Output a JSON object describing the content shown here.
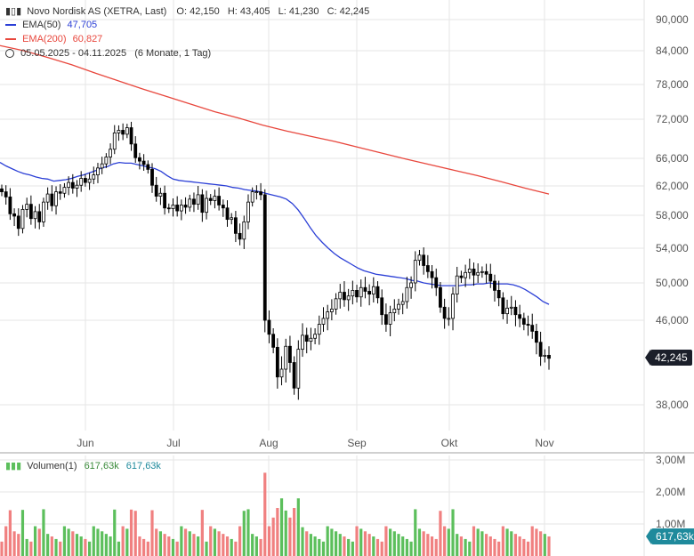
{
  "header": {
    "instrument": "Novo Nordisk AS (XETRA, Last)",
    "ohlc": {
      "o_label": "O:",
      "o": "42,150",
      "h_label": "H:",
      "h": "43,405",
      "l_label": "L:",
      "l": "41,230",
      "c_label": "C:",
      "c": "42,245"
    },
    "ema50_label": "EMA(50)",
    "ema50_value": "47,705",
    "ema200_label": "EMA(200)",
    "ema200_value": "60,827",
    "range_text": "05.05.2025 - 04.11.2025",
    "range_detail": "(6 Monate, 1 Tag)"
  },
  "volume_legend": {
    "label": "Volumen(1)",
    "value1": "617,63k",
    "value2": "617,63k"
  },
  "colors": {
    "ema50": "#2b3fd6",
    "ema200": "#e8473d",
    "up": "#5cbf5c",
    "down": "#f08080",
    "candle": "#000000",
    "grid": "#e6e6e6"
  },
  "chart_data": {
    "type": "candlestick",
    "x_ticks": [
      "Jun",
      "Jul",
      "Aug",
      "Sep",
      "Okt",
      "Nov"
    ],
    "y_ticks": [
      "90,000",
      "84,000",
      "78,000",
      "72,000",
      "66,000",
      "62,000",
      "58,000",
      "54,000",
      "50,000",
      "46,000",
      "38,000"
    ],
    "y_tick_values": [
      90,
      84,
      78,
      72,
      66,
      62,
      58,
      54,
      50,
      46,
      38
    ],
    "last_price_label": "42,245",
    "volume_ticks": [
      "3,00M",
      "2,00M",
      "1,00M"
    ],
    "volume_tick_values": [
      3.0,
      2.0,
      1.0
    ],
    "last_volume_label": "617,63k",
    "close": [
      61.2,
      60.5,
      58.2,
      57.9,
      56.4,
      58.8,
      59.5,
      57.6,
      58.5,
      57.2,
      59.8,
      60.9,
      59.3,
      61.2,
      61.0,
      61.8,
      62.5,
      61.7,
      62.1,
      63.1,
      62.5,
      63.0,
      63.6,
      64.6,
      65.2,
      66.2,
      67.4,
      69.9,
      70.3,
      69.7,
      70.7,
      68.2,
      66.1,
      65.6,
      65.1,
      64.4,
      62.1,
      60.6,
      61.0,
      59.0,
      58.9,
      59.4,
      58.6,
      59.4,
      59.1,
      60.2,
      59.5,
      60.8,
      58.4,
      60.3,
      60.0,
      60.6,
      59.4,
      59.0,
      57.5,
      57.7,
      55.8,
      55.1,
      57.2,
      59.8,
      61.2,
      61.2,
      60.8,
      46.0,
      44.6,
      43.3,
      40.5,
      41.2,
      43.4,
      41.8,
      39.5,
      43.1,
      44.5,
      43.9,
      44.2,
      44.6,
      45.6,
      46.2,
      46.9,
      47.2,
      48.3,
      49.0,
      48.2,
      48.6,
      49.2,
      48.5,
      49.5,
      49.1,
      48.8,
      49.6,
      48.4,
      46.6,
      45.6,
      46.8,
      47.2,
      47.7,
      48.0,
      49.5,
      50.0,
      52.6,
      53.2,
      52.0,
      51.3,
      50.6,
      49.5,
      47.4,
      46.2,
      46.2,
      48.8,
      50.8,
      50.6,
      51.2,
      51.6,
      50.9,
      51.2,
      51.3,
      51.0,
      50.2,
      49.2,
      48.4,
      46.7,
      47.3,
      47.4,
      46.6,
      46.2,
      45.6,
      45.5,
      44.9,
      43.8,
      42.4,
      42.5,
      42.2
    ],
    "ema50": [
      65.4,
      64.9,
      64.5,
      64.1,
      63.8,
      63.6,
      63.3,
      63.1,
      63.0,
      62.7,
      62.8,
      62.9,
      63.1,
      63.4,
      63.6,
      63.9,
      64.2,
      64.6,
      64.8,
      65.2,
      65.4,
      65.3,
      65.3,
      65.1,
      64.9,
      64.7,
      64.5,
      64.1,
      63.5,
      63.0,
      62.8,
      62.7,
      62.6,
      62.5,
      62.4,
      62.3,
      62.2,
      62.1,
      62.0,
      61.8,
      61.7,
      61.5,
      61.4,
      61.3,
      61.1,
      60.9,
      60.7,
      60.5,
      60.2,
      59.6,
      58.7,
      57.6,
      56.5,
      55.5,
      54.7,
      54.0,
      53.4,
      52.9,
      52.5,
      52.1,
      51.7,
      51.4,
      51.2,
      51.0,
      50.9,
      50.8,
      50.7,
      50.6,
      50.5,
      50.3,
      50.2,
      50.0,
      49.9,
      49.8,
      49.7,
      49.7,
      49.7,
      49.7,
      49.8,
      49.8,
      49.9,
      49.9,
      50.0,
      49.9,
      49.9,
      49.9,
      49.8,
      49.6,
      49.3,
      48.9,
      48.5,
      48.0,
      47.7
    ],
    "ema200": [
      85.0,
      84.0,
      82.8,
      81.5,
      80.0,
      78.6,
      77.2,
      75.9,
      74.6,
      73.3,
      72.2,
      71.1,
      70.2,
      69.4,
      68.6,
      67.7,
      66.8,
      65.9,
      65.1,
      64.3,
      63.5,
      62.6,
      61.7,
      60.9
    ]
  }
}
